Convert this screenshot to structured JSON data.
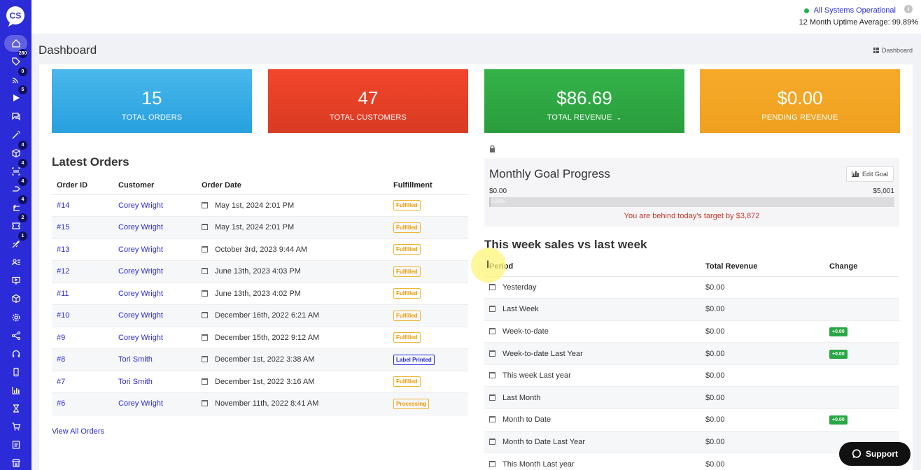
{
  "sidebar": {
    "logo_text": "CS",
    "items": [
      {
        "name": "home",
        "badge": ""
      },
      {
        "name": "tag",
        "badge": "280"
      },
      {
        "name": "rss",
        "badge": "0"
      },
      {
        "name": "play",
        "badge": "5"
      },
      {
        "name": "chat",
        "badge": ""
      },
      {
        "name": "magic-wand",
        "badge": ""
      },
      {
        "name": "box",
        "badge": "4"
      },
      {
        "name": "scan",
        "badge": "4"
      },
      {
        "name": "share",
        "badge": "4"
      },
      {
        "name": "return",
        "badge": "4"
      },
      {
        "name": "ticket",
        "badge": "2"
      },
      {
        "name": "rocket",
        "badge": "1"
      },
      {
        "name": "users",
        "badge": ""
      },
      {
        "name": "monitor",
        "badge": ""
      },
      {
        "name": "cube",
        "badge": ""
      },
      {
        "name": "gear",
        "badge": ""
      },
      {
        "name": "network",
        "badge": ""
      },
      {
        "name": "headset",
        "badge": ""
      },
      {
        "name": "phone",
        "badge": ""
      },
      {
        "name": "chart",
        "badge": ""
      },
      {
        "name": "hourglass",
        "badge": ""
      },
      {
        "name": "cart",
        "badge": ""
      },
      {
        "name": "document",
        "badge": ""
      },
      {
        "name": "store",
        "badge": ""
      }
    ]
  },
  "topbar": {
    "status": "All Systems Operational",
    "uptime": "12 Month Uptime Average: 99.89%",
    "info_icon": "i"
  },
  "page": {
    "title": "Dashboard",
    "breadcrumb": "Dashboard"
  },
  "stats": [
    {
      "value": "15",
      "label": "TOTAL ORDERS"
    },
    {
      "value": "47",
      "label": "TOTAL CUSTOMERS"
    },
    {
      "value": "$86.69",
      "label": "TOTAL REVENUE"
    },
    {
      "value": "$0.00",
      "label": "PENDING REVENUE"
    }
  ],
  "orders": {
    "title": "Latest Orders",
    "headers": [
      "Order ID",
      "Customer",
      "Order Date",
      "Fulfillment"
    ],
    "rows": [
      {
        "id": "#14",
        "customer": "Corey Wright",
        "date": "May 1st, 2024 2:01 PM",
        "status": "Fulfilled"
      },
      {
        "id": "#15",
        "customer": "Corey Wright",
        "date": "May 1st, 2024 2:01 PM",
        "status": "Fulfilled"
      },
      {
        "id": "#13",
        "customer": "Corey Wright",
        "date": "October 3rd, 2023 9:44 AM",
        "status": "Fulfilled"
      },
      {
        "id": "#12",
        "customer": "Corey Wright",
        "date": "June 13th, 2023 4:03 PM",
        "status": "Fulfilled"
      },
      {
        "id": "#11",
        "customer": "Corey Wright",
        "date": "June 13th, 2023 4:02 PM",
        "status": "Fulfilled"
      },
      {
        "id": "#10",
        "customer": "Corey Wright",
        "date": "December 16th, 2022 6:21 AM",
        "status": "Fulfilled"
      },
      {
        "id": "#9",
        "customer": "Corey Wright",
        "date": "December 15th, 2022 9:12 AM",
        "status": "Fulfilled"
      },
      {
        "id": "#8",
        "customer": "Tori Smith",
        "date": "December 1st, 2022 3:38 AM",
        "status": "Label Printed"
      },
      {
        "id": "#7",
        "customer": "Tori Smith",
        "date": "December 1st, 2022 3:16 AM",
        "status": "Fulfilled"
      },
      {
        "id": "#6",
        "customer": "Corey Wright",
        "date": "November 11th, 2022 8:41 AM",
        "status": "Processing"
      }
    ],
    "view_all": "View All Orders"
  },
  "goal": {
    "title": "Monthly Goal Progress",
    "edit_label": "Edit Goal",
    "min": "$0.00",
    "max": "$5,001",
    "progress_label": "0.00%",
    "progress_fraction": 0.0,
    "message": "You are behind today's target by $3,872"
  },
  "weekly": {
    "title": "This week sales vs last week",
    "headers": [
      "Period",
      "Total Revenue",
      "Change"
    ],
    "rows": [
      {
        "period": "Yesterday",
        "revenue": "$0.00",
        "change": ""
      },
      {
        "period": "Last Week",
        "revenue": "$0.00",
        "change": ""
      },
      {
        "period": "Week-to-date",
        "revenue": "$0.00",
        "change": "+0.00"
      },
      {
        "period": "Week-to-date Last Year",
        "revenue": "$0.00",
        "change": "+0.00"
      },
      {
        "period": "This week Last year",
        "revenue": "$0.00",
        "change": ""
      },
      {
        "period": "Last Month",
        "revenue": "$0.00",
        "change": ""
      },
      {
        "period": "Month to Date",
        "revenue": "$0.00",
        "change": "+0.00"
      },
      {
        "period": "Month to Date Last Year",
        "revenue": "$0.00",
        "change": ""
      },
      {
        "period": "This Month Last year",
        "revenue": "$0.00",
        "change": ""
      }
    ]
  },
  "support": {
    "label": "Support"
  },
  "colors": {
    "sidebar": "#2b2bd8",
    "card_blue": "#27a0de",
    "card_red": "#e2402a",
    "card_green": "#2fa843",
    "card_orange": "#f4a526",
    "fulfilled": "#f0b431",
    "change_positive": "#28a745",
    "warning_text": "#c0392b"
  }
}
